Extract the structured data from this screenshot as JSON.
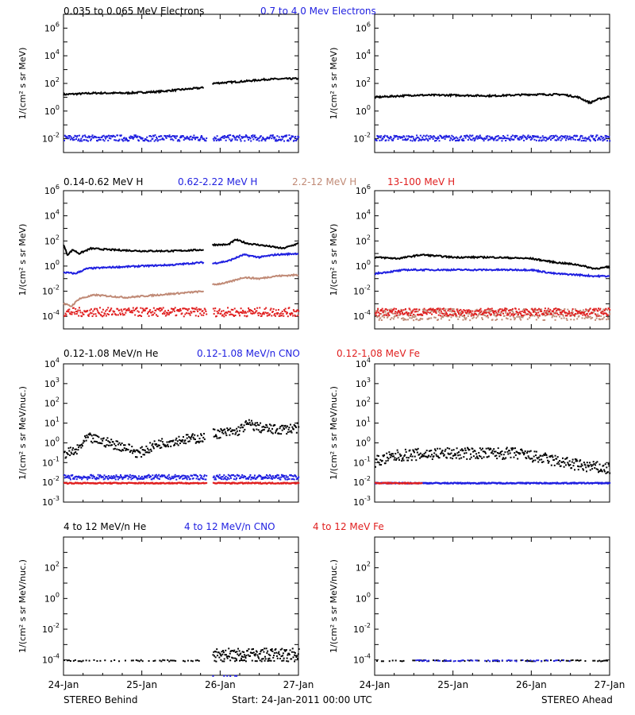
{
  "colors": {
    "black": "#000000",
    "blue": "#1f1fe0",
    "tan": "#c08a76",
    "red": "#e01f1f"
  },
  "footer": {
    "left": "STEREO Behind",
    "center": "Start: 24-Jan-2011 00:00 UTC",
    "right": "STEREO Ahead"
  },
  "x_ticks": [
    "24-Jan",
    "25-Jan",
    "26-Jan",
    "27-Jan"
  ],
  "panel_titles": {
    "row1": [
      {
        "text": "0.035 to 0.065 MeV Electrons",
        "color": "#000000"
      },
      {
        "text": "0.7 to 4.0 Mev Electrons",
        "color": "#1f1fe0"
      }
    ],
    "row2": [
      {
        "text": "0.14-0.62 MeV H",
        "color": "#000000"
      },
      {
        "text": "0.62-2.22 MeV H",
        "color": "#1f1fe0"
      },
      {
        "text": "2.2-12 MeV H",
        "color": "#c08a76"
      },
      {
        "text": "13-100 MeV H",
        "color": "#e01f1f"
      }
    ],
    "row3": [
      {
        "text": "0.12-1.08 MeV/n He",
        "color": "#000000"
      },
      {
        "text": "0.12-1.08 MeV/n CNO",
        "color": "#1f1fe0"
      },
      {
        "text": "0.12-1.08 MeV Fe",
        "color": "#e01f1f"
      }
    ],
    "row4": [
      {
        "text": "4 to 12 MeV/n He",
        "color": "#000000"
      },
      {
        "text": "4 to 12 MeV/n CNO",
        "color": "#1f1fe0"
      },
      {
        "text": "4 to 12 MeV Fe",
        "color": "#e01f1f"
      }
    ]
  },
  "y_labels": {
    "flux_mev": "1/(cm² s sr MeV)",
    "flux_nuc": "1/(cm² s sr MeV/nuc.)"
  },
  "chart_data": [
    {
      "id": "electrons-behind",
      "row": 1,
      "col": 0,
      "type": "scatter",
      "yscale": "log",
      "ylim_exp": [
        -3,
        7
      ],
      "ytick_exps": [
        -2,
        0,
        2,
        4,
        6
      ],
      "ytick_style": "power",
      "ylabel": "flux_mev",
      "x_days": [
        0,
        3
      ],
      "series": [
        {
          "name": "0.035 to 0.065 MeV Electrons",
          "color": "#000000",
          "mode": "line",
          "segments": [
            [
              [
                0,
                1.2
              ],
              [
                0.4,
                1.3
              ],
              [
                0.8,
                1.3
              ],
              [
                1.2,
                1.4
              ],
              [
                1.6,
                1.6
              ],
              [
                1.8,
                1.7
              ]
            ],
            [
              [
                1.9,
                2.0
              ],
              [
                2.3,
                2.15
              ],
              [
                2.6,
                2.3
              ],
              [
                3.0,
                2.35
              ]
            ]
          ]
        },
        {
          "name": "0.7 to 4.0 Mev Electrons",
          "color": "#1f1fe0",
          "mode": "scatter",
          "center": -1.9,
          "spread": 0.22,
          "gap": [
            1.82,
            1.9
          ]
        }
      ]
    },
    {
      "id": "electrons-ahead",
      "row": 1,
      "col": 1,
      "type": "scatter",
      "yscale": "log",
      "ylim_exp": [
        -3,
        7
      ],
      "ytick_exps": [
        -2,
        0,
        2,
        4,
        6
      ],
      "ytick_style": "power",
      "ylabel": "flux_mev",
      "x_days": [
        0,
        3
      ],
      "series": [
        {
          "name": "0.035 to 0.065 MeV Electrons",
          "color": "#000000",
          "mode": "line",
          "segments": [
            [
              [
                0,
                1.0
              ],
              [
                0.5,
                1.15
              ],
              [
                1.0,
                1.15
              ],
              [
                1.5,
                1.1
              ],
              [
                2.0,
                1.2
              ],
              [
                2.4,
                1.2
              ],
              [
                2.6,
                1.0
              ],
              [
                2.75,
                0.6
              ],
              [
                2.85,
                0.85
              ],
              [
                3.0,
                1.05
              ]
            ]
          ]
        },
        {
          "name": "0.7 to 4.0 Mev Electrons",
          "color": "#1f1fe0",
          "mode": "scatter",
          "center": -1.9,
          "spread": 0.2
        }
      ]
    },
    {
      "id": "protons-behind",
      "row": 2,
      "col": 0,
      "type": "scatter",
      "yscale": "log",
      "ylim_exp": [
        -5,
        6
      ],
      "ytick_exps": [
        -4,
        -2,
        0,
        2,
        4,
        6
      ],
      "ytick_style": "power",
      "ylabel": "flux_mev",
      "x_days": [
        0,
        3
      ],
      "series": [
        {
          "name": "0.14-0.62 MeV H",
          "color": "#000000",
          "mode": "line",
          "segments": [
            [
              [
                0,
                1.7
              ],
              [
                0.05,
                0.9
              ],
              [
                0.12,
                1.3
              ],
              [
                0.2,
                1.0
              ],
              [
                0.35,
                1.4
              ],
              [
                0.6,
                1.3
              ],
              [
                1.0,
                1.2
              ],
              [
                1.4,
                1.2
              ],
              [
                1.8,
                1.3
              ]
            ],
            [
              [
                1.9,
                1.7
              ],
              [
                2.1,
                1.7
              ],
              [
                2.2,
                2.1
              ],
              [
                2.35,
                1.8
              ],
              [
                2.6,
                1.6
              ],
              [
                2.8,
                1.4
              ],
              [
                3.0,
                1.8
              ]
            ]
          ]
        },
        {
          "name": "0.62-2.22 MeV H",
          "color": "#1f1fe0",
          "mode": "line",
          "segments": [
            [
              [
                0,
                -0.5
              ],
              [
                0.15,
                -0.6
              ],
              [
                0.3,
                -0.2
              ],
              [
                0.6,
                -0.1
              ],
              [
                1.0,
                0
              ],
              [
                1.4,
                0.1
              ],
              [
                1.8,
                0.3
              ]
            ],
            [
              [
                1.9,
                0.2
              ],
              [
                2.1,
                0.4
              ],
              [
                2.3,
                0.9
              ],
              [
                2.5,
                0.7
              ],
              [
                2.7,
                0.9
              ],
              [
                3.0,
                1.0
              ]
            ]
          ]
        },
        {
          "name": "2.2-12 MeV H",
          "color": "#c08a76",
          "mode": "line",
          "segments": [
            [
              [
                0,
                -3.0
              ],
              [
                0.1,
                -3.2
              ],
              [
                0.2,
                -2.6
              ],
              [
                0.4,
                -2.3
              ],
              [
                0.8,
                -2.5
              ],
              [
                1.2,
                -2.3
              ],
              [
                1.6,
                -2.1
              ],
              [
                1.8,
                -2.0
              ]
            ],
            [
              [
                1.9,
                -1.5
              ],
              [
                2.1,
                -1.3
              ],
              [
                2.3,
                -0.9
              ],
              [
                2.5,
                -1.0
              ],
              [
                2.7,
                -0.8
              ],
              [
                3.0,
                -0.7
              ]
            ]
          ]
        },
        {
          "name": "13-100 MeV H",
          "color": "#e01f1f",
          "mode": "scatter",
          "center": -3.6,
          "spread": 0.35,
          "gap": [
            1.82,
            1.9
          ]
        }
      ]
    },
    {
      "id": "protons-ahead",
      "row": 2,
      "col": 1,
      "type": "scatter",
      "yscale": "log",
      "ylim_exp": [
        -5,
        6
      ],
      "ytick_exps": [
        -4,
        -2,
        0,
        2,
        4,
        6
      ],
      "ytick_style": "power",
      "ylabel": "flux_mev",
      "x_days": [
        0,
        3
      ],
      "series": [
        {
          "name": "0.14-0.62 MeV H",
          "color": "#000000",
          "mode": "line",
          "segments": [
            [
              [
                0,
                0.7
              ],
              [
                0.3,
                0.6
              ],
              [
                0.6,
                0.9
              ],
              [
                1.0,
                0.7
              ],
              [
                1.5,
                0.7
              ],
              [
                2.0,
                0.6
              ],
              [
                2.3,
                0.3
              ],
              [
                2.6,
                0.1
              ],
              [
                2.8,
                -0.2
              ],
              [
                3.0,
                -0.1
              ]
            ]
          ]
        },
        {
          "name": "0.62-2.22 MeV H",
          "color": "#1f1fe0",
          "mode": "line",
          "segments": [
            [
              [
                0,
                -0.6
              ],
              [
                0.4,
                -0.3
              ],
              [
                0.8,
                -0.3
              ],
              [
                1.2,
                -0.3
              ],
              [
                1.6,
                -0.3
              ],
              [
                2.0,
                -0.3
              ],
              [
                2.3,
                -0.6
              ],
              [
                2.6,
                -0.7
              ],
              [
                2.8,
                -0.8
              ],
              [
                3.0,
                -0.8
              ]
            ]
          ]
        },
        {
          "name": "2.2-12 MeV H",
          "color": "#c08a76",
          "mode": "scatter",
          "center": -3.8,
          "spread": 0.45
        },
        {
          "name": "13-100 MeV H",
          "color": "#e01f1f",
          "mode": "scatter",
          "center": -3.6,
          "spread": 0.3
        }
      ]
    },
    {
      "id": "heavy-low-behind",
      "row": 3,
      "col": 0,
      "type": "scatter",
      "yscale": "log",
      "ylim_exp": [
        -3,
        4
      ],
      "ytick_exps": [
        -3,
        -2,
        -1,
        0,
        1,
        2,
        3,
        4
      ],
      "ytick_style": "power",
      "ylabel": "flux_nuc",
      "x_days": [
        0,
        3
      ],
      "series": [
        {
          "name": "0.12-1.08 MeV/n He",
          "color": "#000000",
          "mode": "scatter",
          "gap": [
            1.82,
            1.9
          ],
          "segments": [
            [
              [
                0,
                -0.5
              ],
              [
                0.15,
                -0.4
              ],
              [
                0.3,
                0.3
              ],
              [
                0.5,
                0.1
              ],
              [
                0.8,
                -0.2
              ],
              [
                0.95,
                -0.5
              ],
              [
                1.2,
                0
              ],
              [
                1.5,
                0.2
              ],
              [
                1.8,
                0.3
              ]
            ],
            [
              [
                1.9,
                0.5
              ],
              [
                2.2,
                0.6
              ],
              [
                2.35,
                1.0
              ],
              [
                2.5,
                0.8
              ],
              [
                2.7,
                0.7
              ],
              [
                3.0,
                0.8
              ]
            ]
          ],
          "spread": 0.25
        },
        {
          "name": "0.12-1.08 MeV/n CNO",
          "color": "#1f1fe0",
          "mode": "scatter",
          "center": -1.7,
          "spread": 0.12,
          "gap": [
            1.82,
            1.9
          ]
        },
        {
          "name": "0.12-1.08 MeV Fe",
          "color": "#e01f1f",
          "mode": "scatter",
          "center": -2.0,
          "spread": 0.03,
          "gap": [
            1.82,
            1.9
          ]
        }
      ]
    },
    {
      "id": "heavy-low-ahead",
      "row": 3,
      "col": 1,
      "type": "scatter",
      "yscale": "log",
      "ylim_exp": [
        -3,
        4
      ],
      "ytick_exps": [
        -3,
        -2,
        -1,
        0,
        1,
        2,
        3,
        4
      ],
      "ytick_style": "power",
      "ylabel": "flux_nuc",
      "x_days": [
        0,
        3
      ],
      "series": [
        {
          "name": "0.12-1.08 MeV/n He",
          "color": "#000000",
          "mode": "scatter",
          "segments": [
            [
              [
                0,
                -0.9
              ],
              [
                0.3,
                -0.6
              ],
              [
                0.8,
                -0.5
              ],
              [
                1.3,
                -0.5
              ],
              [
                1.8,
                -0.5
              ],
              [
                2.2,
                -0.8
              ],
              [
                2.6,
                -1.1
              ],
              [
                3.0,
                -1.3
              ]
            ]
          ],
          "spread": 0.3
        },
        {
          "name": "0.12-1.08 MeV/n CNO",
          "color": "#1f1fe0",
          "mode": "scatter",
          "center": -2.0,
          "spread": 0.03
        },
        {
          "name": "0.12-1.08 MeV Fe",
          "color": "#e01f1f",
          "mode": "scatter",
          "center": -2.0,
          "spread": 0.03,
          "xlim": [
            0,
            0.6
          ]
        }
      ]
    },
    {
      "id": "heavy-high-behind",
      "row": 4,
      "col": 0,
      "type": "scatter",
      "yscale": "log",
      "ylim_exp": [
        -5,
        4
      ],
      "ytick_exps": [
        -4,
        -2,
        0,
        2
      ],
      "ytick_style": "power",
      "ylabel": "flux_nuc",
      "x_days": [
        0,
        3
      ],
      "series": [
        {
          "name": "4 to 12 MeV/n He",
          "color": "#000000",
          "mode": "scatter",
          "center": -4.0,
          "spread": 0.05,
          "gap": [
            1.82,
            1.9
          ],
          "sparse": true
        },
        {
          "name": "4 to 12 MeV/n He",
          "color": "#000000",
          "mode": "scatter",
          "center": -3.55,
          "spread": 0.35,
          "xlim": [
            1.9,
            3.0
          ]
        },
        {
          "name": "4 to 12 MeV/n CNO",
          "color": "#1f1fe0",
          "mode": "scatter",
          "center": -5.0,
          "spread": 0.02,
          "xlim": [
            1.9,
            2.2
          ],
          "sparse": true
        }
      ]
    },
    {
      "id": "heavy-high-ahead",
      "row": 4,
      "col": 1,
      "type": "scatter",
      "yscale": "log",
      "ylim_exp": [
        -5,
        4
      ],
      "ytick_exps": [
        -4,
        -2,
        0,
        2
      ],
      "ytick_style": "power",
      "ylabel": "flux_nuc",
      "x_days": [
        0,
        3
      ],
      "series": [
        {
          "name": "4 to 12 MeV/n He",
          "color": "#000000",
          "mode": "scatter",
          "center": -4.0,
          "spread": 0.04,
          "sparse": true
        },
        {
          "name": "4 to 12 MeV/n CNO",
          "color": "#1f1fe0",
          "mode": "scatter",
          "center": -4.0,
          "spread": 0.04,
          "xlim": [
            0.5,
            2.5
          ],
          "sparse": true
        },
        {
          "name": "4 to 12 MeV Fe",
          "color": "#e01f1f",
          "mode": "scatter",
          "center": -5.0,
          "spread": 0.02,
          "xlim": [
            0.4,
            0.45
          ],
          "sparse": true
        }
      ]
    }
  ]
}
